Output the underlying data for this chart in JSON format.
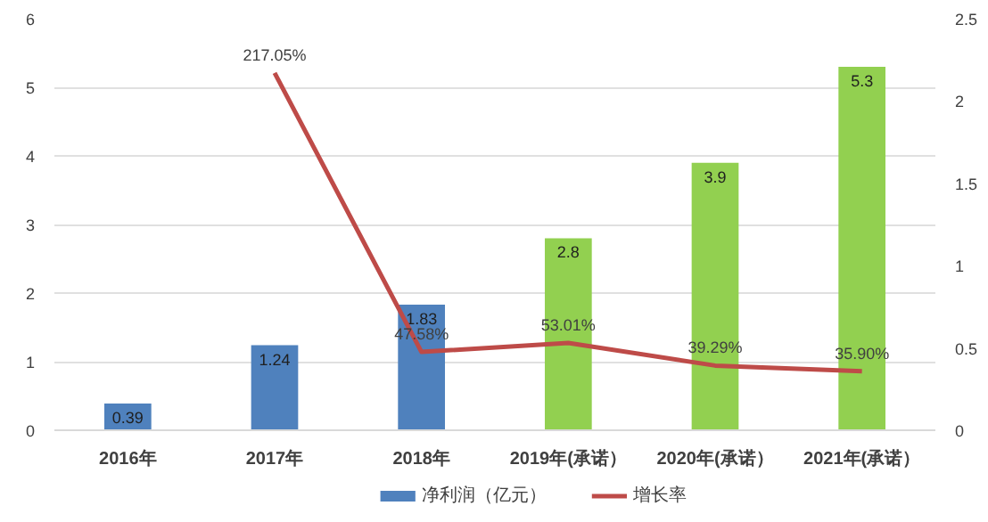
{
  "chart_data": {
    "type": "bar",
    "categories": [
      "2016年",
      "2017年",
      "2018年",
      "2019年(承诺）",
      "2020年(承诺）",
      "2021年(承诺）"
    ],
    "series": [
      {
        "name": "净利润（亿元）",
        "type": "bar",
        "color": "#4f81bd",
        "colors": [
          "#4f81bd",
          "#4f81bd",
          "#4f81bd",
          "#92d050",
          "#92d050",
          "#92d050"
        ],
        "values": [
          0.39,
          1.24,
          1.83,
          2.8,
          3.9,
          5.3
        ]
      },
      {
        "name": "增长率",
        "type": "line",
        "axis": "y2",
        "color": "#be4b48",
        "values": [
          null,
          2.1705,
          0.4758,
          0.5301,
          0.3929,
          0.359
        ],
        "value_labels": [
          null,
          "217.05%",
          "47.58%",
          "53.01%",
          "39.29%",
          "35.90%"
        ]
      }
    ],
    "data_labels": true,
    "ylim": [
      0,
      6
    ],
    "yticks": [
      0,
      1,
      2,
      3,
      4,
      5,
      6
    ],
    "y2lim": [
      0,
      2.5
    ],
    "y2ticks": [
      0,
      0.5,
      1,
      1.5,
      2,
      2.5
    ],
    "grid": "y",
    "legend": "bottom",
    "marker": "none",
    "line_style": "solid"
  }
}
